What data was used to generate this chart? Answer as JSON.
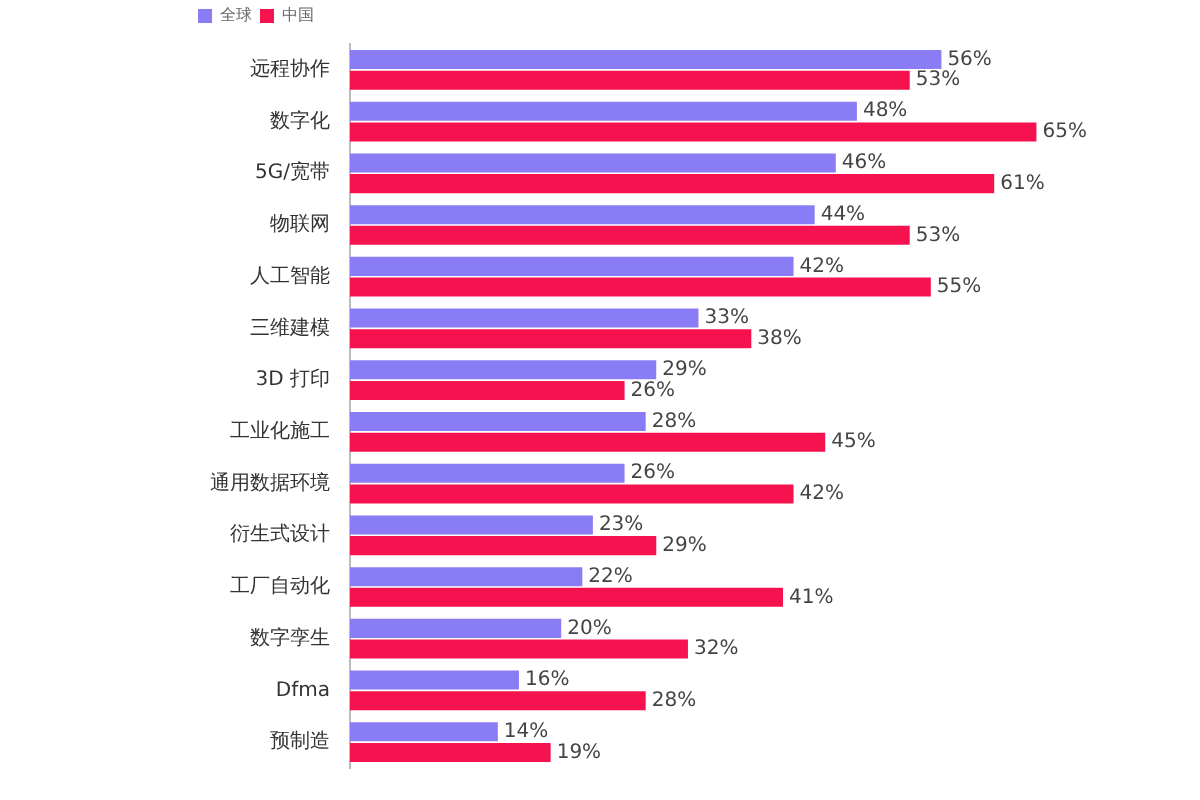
{
  "chart_data": {
    "type": "bar",
    "orientation": "horizontal",
    "legend": "top left",
    "data_labels": true,
    "categories": [
      "远程协作",
      "数字化",
      "5G/宽带",
      "物联网",
      "人工智能",
      "三维建模",
      "3D 打印",
      "工业化施工",
      "通用数据环境",
      "衍生式设计",
      "工厂自动化",
      "数字孪生",
      "Dfma",
      "预制造"
    ],
    "series": [
      {
        "name": "全球",
        "color": "#8a7cf5",
        "values": [
          56,
          48,
          46,
          44,
          42,
          33,
          29,
          28,
          26,
          23,
          22,
          20,
          16,
          14
        ],
        "value_labels": [
          "56%",
          "48%",
          "46%",
          "44%",
          "42%",
          "33%",
          "29%",
          "28%",
          "26%",
          "23%",
          "22%",
          "20%",
          "16%",
          "14%"
        ]
      },
      {
        "name": "中国",
        "color": "#f5124f",
        "values": [
          53,
          65,
          61,
          53,
          55,
          38,
          26,
          45,
          42,
          29,
          41,
          32,
          28,
          19
        ],
        "value_labels": [
          "53%",
          "65%",
          "61%",
          "53%",
          "55%",
          "38%",
          "26%",
          "45%",
          "42%",
          "29%",
          "41%",
          "32%",
          "28%",
          "19%"
        ]
      }
    ]
  }
}
